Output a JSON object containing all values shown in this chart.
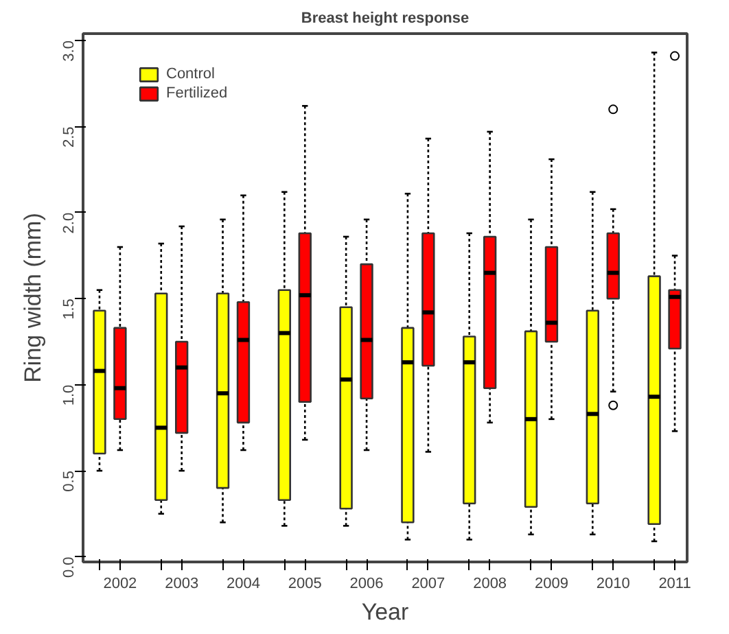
{
  "chart_data": {
    "type": "box",
    "title": "Breast height response",
    "xlabel": "Year",
    "ylabel": "Ring width (mm)",
    "categories": [
      "2002",
      "2003",
      "2004",
      "2005",
      "2006",
      "2007",
      "2008",
      "2009",
      "2010",
      "2011"
    ],
    "ylim": [
      -0.03,
      3.04
    ],
    "yticks": [
      {
        "value": 0,
        "label": "0.0"
      },
      {
        "value": 0.5,
        "label": "0.5"
      },
      {
        "value": 1,
        "label": "1.0"
      },
      {
        "value": 1.5,
        "label": "1.5"
      },
      {
        "value": 2,
        "label": "2.0"
      },
      {
        "value": 2.5,
        "label": "2.5"
      },
      {
        "value": 3,
        "label": "3.0"
      }
    ],
    "grid": false,
    "legend": "top left",
    "series": [
      {
        "name": "Control",
        "color": "#ffff00",
        "boxes": [
          {
            "low": 0.5,
            "q1": 0.6,
            "median": 1.08,
            "q3": 1.43,
            "high": 1.55
          },
          {
            "low": 0.25,
            "q1": 0.33,
            "median": 0.75,
            "q3": 1.53,
            "high": 1.82
          },
          {
            "low": 0.2,
            "q1": 0.4,
            "median": 0.95,
            "q3": 1.53,
            "high": 1.96
          },
          {
            "low": 0.18,
            "q1": 0.33,
            "median": 1.3,
            "q3": 1.55,
            "high": 2.12
          },
          {
            "low": 0.18,
            "q1": 0.28,
            "median": 1.03,
            "q3": 1.45,
            "high": 1.86
          },
          {
            "low": 0.1,
            "q1": 0.2,
            "median": 1.13,
            "q3": 1.33,
            "high": 2.11
          },
          {
            "low": 0.1,
            "q1": 0.31,
            "median": 1.13,
            "q3": 1.28,
            "high": 1.88
          },
          {
            "low": 0.13,
            "q1": 0.29,
            "median": 0.8,
            "q3": 1.31,
            "high": 1.96
          },
          {
            "low": 0.13,
            "q1": 0.31,
            "median": 0.83,
            "q3": 1.43,
            "high": 2.12
          },
          {
            "low": 0.09,
            "q1": 0.19,
            "median": 0.93,
            "q3": 1.63,
            "high": 2.93
          }
        ]
      },
      {
        "name": "Fertilized",
        "color": "#ff0000",
        "boxes": [
          {
            "low": 0.62,
            "q1": 0.8,
            "median": 0.98,
            "q3": 1.33,
            "high": 1.8
          },
          {
            "low": 0.5,
            "q1": 0.72,
            "median": 1.1,
            "q3": 1.25,
            "high": 1.92
          },
          {
            "low": 0.62,
            "q1": 0.78,
            "median": 1.26,
            "q3": 1.48,
            "high": 2.1
          },
          {
            "low": 0.68,
            "q1": 0.9,
            "median": 1.52,
            "q3": 1.88,
            "high": 2.62
          },
          {
            "low": 0.62,
            "q1": 0.92,
            "median": 1.26,
            "q3": 1.7,
            "high": 1.96
          },
          {
            "low": 0.61,
            "q1": 1.11,
            "median": 1.42,
            "q3": 1.88,
            "high": 2.43
          },
          {
            "low": 0.78,
            "q1": 0.98,
            "median": 1.65,
            "q3": 1.86,
            "high": 2.47
          },
          {
            "low": 0.8,
            "q1": 1.25,
            "median": 1.36,
            "q3": 1.8,
            "high": 2.31
          },
          {
            "low": 0.96,
            "q1": 1.5,
            "median": 1.65,
            "q3": 1.88,
            "high": 2.02,
            "outliers": [
              2.6,
              0.88
            ]
          },
          {
            "low": 0.73,
            "q1": 1.21,
            "median": 1.51,
            "q3": 1.55,
            "high": 1.75,
            "outliers": [
              2.91
            ]
          }
        ]
      }
    ]
  }
}
